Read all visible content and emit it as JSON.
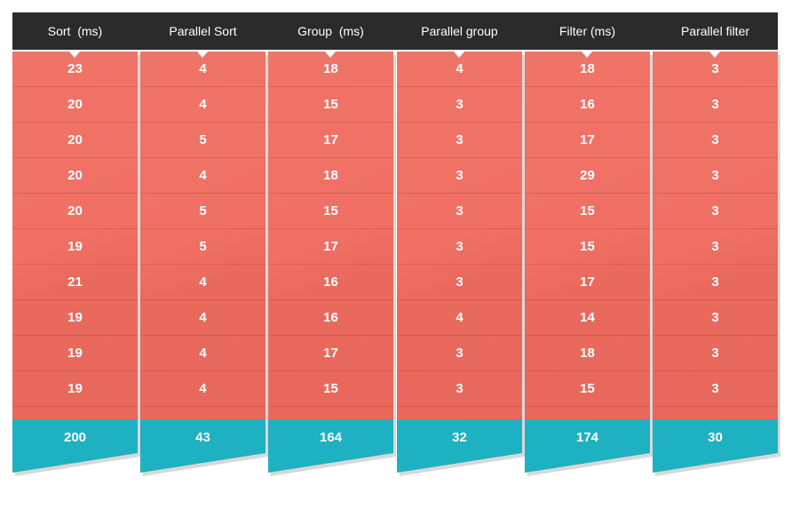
{
  "chart_data": {
    "type": "table",
    "columns": [
      {
        "header": "Sort  (ms)",
        "values": [
          23,
          20,
          20,
          20,
          20,
          19,
          21,
          19,
          19,
          19
        ],
        "total": 200
      },
      {
        "header": "Parallel Sort",
        "values": [
          4,
          4,
          5,
          4,
          5,
          5,
          4,
          4,
          4,
          4
        ],
        "total": 43
      },
      {
        "header": "Group  (ms)",
        "values": [
          18,
          15,
          17,
          18,
          15,
          17,
          16,
          16,
          17,
          15
        ],
        "total": 164
      },
      {
        "header": "Parallel group",
        "values": [
          4,
          3,
          3,
          3,
          3,
          3,
          3,
          4,
          3,
          3
        ],
        "total": 32
      },
      {
        "header": "Filter (ms)",
        "values": [
          18,
          16,
          17,
          29,
          15,
          15,
          17,
          14,
          18,
          15
        ],
        "total": 174
      },
      {
        "header": "Parallel filter",
        "values": [
          3,
          3,
          3,
          3,
          3,
          3,
          3,
          3,
          3,
          3
        ],
        "total": 30
      }
    ]
  },
  "colors": {
    "header_bg": "#2b2b2b",
    "body_bg": "#ef6b5f",
    "total_bg": "#1db1c1",
    "text": "#ffffff"
  },
  "icons": {
    "column_notch": "caret-down-icon"
  }
}
